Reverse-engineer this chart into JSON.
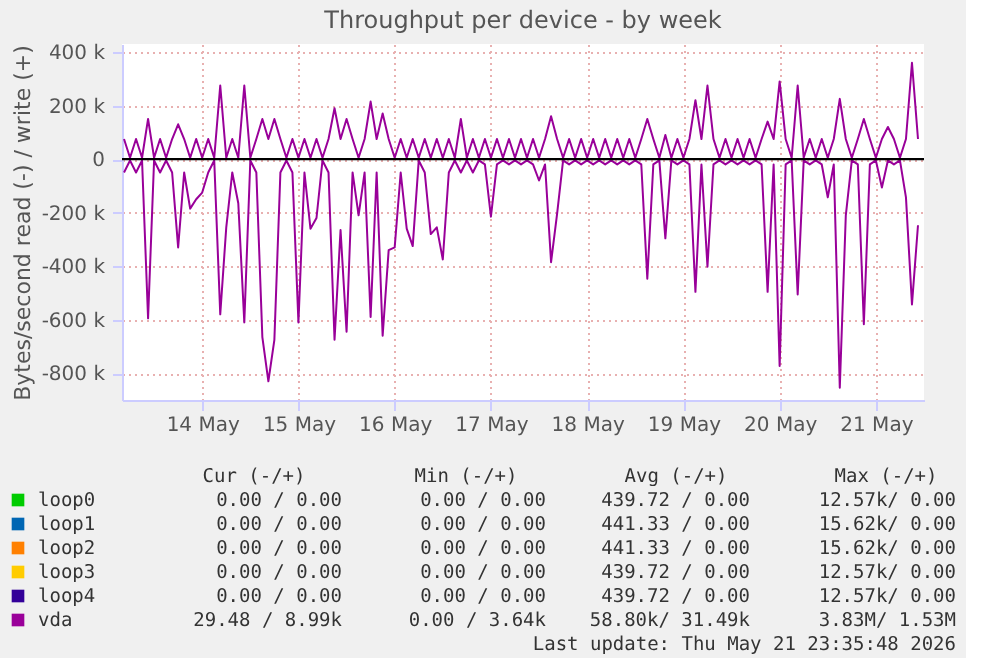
{
  "chart_data": {
    "type": "line",
    "title": "Throughput per device - by week",
    "ylabel": "Bytes/second read (-) / write (+)",
    "grid": true,
    "legend": "bottom",
    "xlim": [
      "2026-05-13T16:00",
      "2026-05-22T00:00"
    ],
    "xticks": [
      {
        "value": "2026-05-14T12:00",
        "label": "14 May"
      },
      {
        "value": "2026-05-15T12:00",
        "label": "15 May"
      },
      {
        "value": "2026-05-16T12:00",
        "label": "16 May"
      },
      {
        "value": "2026-05-17T12:00",
        "label": "17 May"
      },
      {
        "value": "2026-05-18T12:00",
        "label": "18 May"
      },
      {
        "value": "2026-05-19T12:00",
        "label": "19 May"
      },
      {
        "value": "2026-05-20T12:00",
        "label": "20 May"
      },
      {
        "value": "2026-05-21T12:00",
        "label": "21 May"
      }
    ],
    "ylim": [
      -900000,
      430000
    ],
    "yticks": [
      {
        "value": -800000,
        "label": "-800 k"
      },
      {
        "value": -600000,
        "label": "-600 k"
      },
      {
        "value": -400000,
        "label": "-400 k"
      },
      {
        "value": -200000,
        "label": "-200 k"
      },
      0,
      {
        "value": 200000,
        "label": "200 k"
      },
      {
        "value": 400000,
        "label": "400 k"
      }
    ],
    "ref_lines": [
      {
        "axis": "y",
        "value": 0,
        "color": "#000000"
      }
    ],
    "x": [
      "2026-05-13T16:30",
      "2026-05-13T18:00",
      "2026-05-13T19:30",
      "2026-05-13T21:00",
      "2026-05-13T22:30",
      "2026-05-14T00:00",
      "2026-05-14T01:30",
      "2026-05-14T03:00",
      "2026-05-14T04:30",
      "2026-05-14T06:00",
      "2026-05-14T07:30",
      "2026-05-14T09:00",
      "2026-05-14T10:30",
      "2026-05-14T12:00",
      "2026-05-14T13:30",
      "2026-05-14T15:00",
      "2026-05-14T16:30",
      "2026-05-14T18:00",
      "2026-05-14T19:30",
      "2026-05-14T21:00",
      "2026-05-14T22:30",
      "2026-05-15T00:00",
      "2026-05-15T01:30",
      "2026-05-15T03:00",
      "2026-05-15T04:30",
      "2026-05-15T06:00",
      "2026-05-15T07:30",
      "2026-05-15T09:00",
      "2026-05-15T10:30",
      "2026-05-15T12:00",
      "2026-05-15T13:30",
      "2026-05-15T15:00",
      "2026-05-15T16:30",
      "2026-05-15T18:00",
      "2026-05-15T19:30",
      "2026-05-15T21:00",
      "2026-05-15T22:30",
      "2026-05-16T00:00",
      "2026-05-16T01:30",
      "2026-05-16T03:00",
      "2026-05-16T04:30",
      "2026-05-16T06:00",
      "2026-05-16T07:30",
      "2026-05-16T09:00",
      "2026-05-16T10:30",
      "2026-05-16T12:00",
      "2026-05-16T13:30",
      "2026-05-16T15:00",
      "2026-05-16T16:30",
      "2026-05-16T18:00",
      "2026-05-16T19:30",
      "2026-05-16T21:00",
      "2026-05-16T22:30",
      "2026-05-17T00:00",
      "2026-05-17T01:30",
      "2026-05-17T03:00",
      "2026-05-17T04:30",
      "2026-05-17T06:00",
      "2026-05-17T07:30",
      "2026-05-17T09:00",
      "2026-05-17T10:30",
      "2026-05-17T12:00",
      "2026-05-17T13:30",
      "2026-05-17T15:00",
      "2026-05-17T16:30",
      "2026-05-17T18:00",
      "2026-05-17T19:30",
      "2026-05-17T21:00",
      "2026-05-17T22:30",
      "2026-05-18T00:00",
      "2026-05-18T01:30",
      "2026-05-18T03:00",
      "2026-05-18T04:30",
      "2026-05-18T06:00",
      "2026-05-18T07:30",
      "2026-05-18T09:00",
      "2026-05-18T10:30",
      "2026-05-18T12:00",
      "2026-05-18T13:30",
      "2026-05-18T15:00",
      "2026-05-18T16:30",
      "2026-05-18T18:00",
      "2026-05-18T19:30",
      "2026-05-18T21:00",
      "2026-05-18T22:30",
      "2026-05-19T00:00",
      "2026-05-19T01:30",
      "2026-05-19T03:00",
      "2026-05-19T04:30",
      "2026-05-19T06:00",
      "2026-05-19T07:30",
      "2026-05-19T09:00",
      "2026-05-19T10:30",
      "2026-05-19T12:00",
      "2026-05-19T13:30",
      "2026-05-19T15:00",
      "2026-05-19T16:30",
      "2026-05-19T18:00",
      "2026-05-19T19:30",
      "2026-05-19T21:00",
      "2026-05-19T22:30",
      "2026-05-20T00:00",
      "2026-05-20T01:30",
      "2026-05-20T03:00",
      "2026-05-20T04:30",
      "2026-05-20T06:00",
      "2026-05-20T07:30",
      "2026-05-20T09:00",
      "2026-05-20T10:30",
      "2026-05-20T12:00",
      "2026-05-20T13:30",
      "2026-05-20T15:00",
      "2026-05-20T16:30",
      "2026-05-20T18:00",
      "2026-05-20T19:30",
      "2026-05-20T21:00",
      "2026-05-20T22:30",
      "2026-05-21T00:00",
      "2026-05-21T01:30",
      "2026-05-21T03:00",
      "2026-05-21T04:30",
      "2026-05-21T06:00",
      "2026-05-21T07:30",
      "2026-05-21T09:00",
      "2026-05-21T10:30",
      "2026-05-21T12:00",
      "2026-05-21T13:30",
      "2026-05-21T15:00",
      "2026-05-21T16:30",
      "2026-05-21T18:00",
      "2026-05-21T19:30",
      "2026-05-21T21:00",
      "2026-05-21T22:30"
    ],
    "series": [
      {
        "name": "loop0",
        "color": "#00cc00",
        "values": [
          null,
          null,
          null,
          null,
          null,
          null,
          null,
          null,
          null,
          null,
          null,
          null,
          null,
          null,
          null,
          null,
          null,
          null,
          null,
          null,
          null,
          null,
          null,
          null,
          null,
          null,
          null,
          null,
          null,
          null,
          null,
          null,
          null,
          null,
          null,
          null,
          null,
          null,
          null,
          null,
          null,
          null,
          null,
          null,
          null,
          null,
          null,
          null,
          null,
          null,
          null,
          null,
          null,
          null,
          null,
          null,
          null,
          null,
          null,
          null,
          null,
          null,
          null,
          null,
          null,
          null,
          null,
          null,
          null,
          null,
          null,
          null,
          null,
          null,
          null,
          null,
          null,
          null,
          null,
          null,
          null,
          null,
          null,
          null,
          null,
          null,
          null,
          null,
          null,
          null,
          null,
          null,
          null,
          null,
          null,
          null,
          null,
          null,
          null,
          null,
          null,
          null,
          null,
          null,
          null,
          null,
          null,
          null,
          null,
          null,
          null,
          null,
          null,
          null,
          null,
          null,
          null,
          null,
          null,
          null,
          null,
          null,
          null,
          null,
          null,
          null,
          null,
          null,
          null,
          null,
          null,
          null,
          null
        ]
      },
      {
        "name": "loop1",
        "color": "#0066b3",
        "values": [
          null,
          null,
          null,
          null,
          null,
          null,
          null,
          null,
          null,
          null,
          null,
          null,
          null,
          null,
          null,
          null,
          null,
          null,
          null,
          null,
          null,
          null,
          null,
          null,
          null,
          null,
          null,
          null,
          null,
          null,
          null,
          null,
          null,
          null,
          null,
          null,
          null,
          null,
          null,
          null,
          null,
          null,
          null,
          null,
          null,
          null,
          null,
          null,
          null,
          null,
          null,
          null,
          null,
          null,
          null,
          null,
          null,
          null,
          null,
          null,
          null,
          null,
          null,
          null,
          null,
          null,
          null,
          null,
          null,
          null,
          null,
          null,
          null,
          null,
          null,
          null,
          null,
          null,
          null,
          null,
          null,
          null,
          null,
          null,
          null,
          null,
          null,
          null,
          null,
          null,
          null,
          null,
          null,
          null,
          null,
          null,
          null,
          null,
          null,
          null,
          null,
          null,
          null,
          null,
          null,
          null,
          null,
          null,
          null,
          null,
          null,
          null,
          null,
          null,
          null,
          null,
          null,
          null,
          null,
          null,
          null,
          null,
          null,
          null,
          null,
          null,
          null,
          null,
          null,
          null,
          null,
          null,
          null
        ]
      },
      {
        "name": "loop2",
        "color": "#ff8000",
        "values": [
          null,
          null,
          null,
          null,
          null,
          null,
          null,
          null,
          null,
          null,
          null,
          null,
          null,
          null,
          null,
          null,
          null,
          null,
          null,
          null,
          null,
          null,
          null,
          null,
          null,
          null,
          null,
          null,
          null,
          null,
          null,
          null,
          null,
          null,
          null,
          null,
          null,
          null,
          null,
          null,
          null,
          null,
          null,
          null,
          null,
          null,
          null,
          null,
          null,
          null,
          null,
          null,
          null,
          null,
          null,
          null,
          null,
          null,
          null,
          null,
          null,
          null,
          null,
          null,
          null,
          null,
          null,
          null,
          null,
          null,
          null,
          null,
          null,
          null,
          null,
          null,
          null,
          null,
          null,
          null,
          null,
          null,
          null,
          null,
          null,
          null,
          null,
          null,
          null,
          null,
          null,
          null,
          null,
          null,
          null,
          null,
          null,
          null,
          null,
          null,
          null,
          null,
          null,
          null,
          null,
          null,
          null,
          null,
          null,
          null,
          null,
          null,
          null,
          null,
          null,
          null,
          null,
          null,
          null,
          null,
          null,
          null,
          null,
          null,
          null,
          null,
          null,
          null,
          null,
          null,
          null,
          null,
          null
        ]
      },
      {
        "name": "loop3",
        "color": "#ffcc00",
        "values": [
          null,
          null,
          null,
          null,
          null,
          null,
          null,
          null,
          null,
          null,
          null,
          null,
          null,
          null,
          null,
          null,
          null,
          null,
          null,
          null,
          null,
          null,
          null,
          null,
          null,
          null,
          null,
          null,
          null,
          null,
          null,
          null,
          null,
          null,
          null,
          null,
          null,
          null,
          null,
          null,
          null,
          null,
          null,
          null,
          null,
          null,
          null,
          null,
          null,
          null,
          null,
          null,
          null,
          null,
          null,
          null,
          null,
          null,
          null,
          null,
          null,
          null,
          null,
          null,
          null,
          null,
          null,
          null,
          null,
          null,
          null,
          null,
          null,
          null,
          null,
          null,
          null,
          null,
          null,
          null,
          null,
          null,
          null,
          null,
          null,
          null,
          null,
          null,
          null,
          null,
          null,
          null,
          null,
          null,
          null,
          null,
          null,
          null,
          null,
          null,
          null,
          null,
          null,
          null,
          null,
          null,
          null,
          null,
          null,
          null,
          null,
          null,
          null,
          null,
          null,
          null,
          null,
          null,
          null,
          null,
          null,
          null,
          null,
          null,
          null,
          null,
          null,
          null,
          null,
          null,
          null,
          null,
          null
        ]
      },
      {
        "name": "loop4",
        "color": "#330099",
        "values": [
          null,
          null,
          null,
          null,
          null,
          null,
          null,
          null,
          null,
          null,
          null,
          null,
          null,
          null,
          null,
          null,
          null,
          null,
          null,
          null,
          null,
          null,
          null,
          null,
          null,
          null,
          null,
          null,
          null,
          null,
          null,
          null,
          null,
          null,
          null,
          null,
          null,
          null,
          null,
          null,
          null,
          null,
          null,
          null,
          null,
          null,
          null,
          null,
          null,
          null,
          null,
          null,
          null,
          null,
          null,
          null,
          null,
          null,
          null,
          null,
          null,
          null,
          null,
          null,
          null,
          null,
          null,
          null,
          null,
          null,
          null,
          null,
          null,
          null,
          null,
          null,
          null,
          null,
          null,
          null,
          null,
          null,
          null,
          null,
          null,
          null,
          null,
          null,
          null,
          null,
          null,
          null,
          null,
          null,
          null,
          null,
          null,
          null,
          null,
          null,
          null,
          null,
          null,
          null,
          null,
          null,
          null,
          null,
          null,
          null,
          null,
          null,
          null,
          null,
          null,
          null,
          null,
          null,
          null,
          null,
          null,
          null,
          null,
          null,
          null,
          null,
          null,
          null,
          null,
          null,
          null,
          null,
          null
        ]
      },
      {
        "name": "vda",
        "color": "#990099",
        "values": [
          -50000,
          -5000,
          -50000,
          -5000,
          -595000,
          -5000,
          -50000,
          -5000,
          -50000,
          -330000,
          -50000,
          -185000,
          -150000,
          -125000,
          -50000,
          -5000,
          -580000,
          -255000,
          -50000,
          -165000,
          -610000,
          -5000,
          -50000,
          -665000,
          -830000,
          -675000,
          -50000,
          -5000,
          -50000,
          -610000,
          -50000,
          -260000,
          -220000,
          -5000,
          -50000,
          -675000,
          -265000,
          -645000,
          -50000,
          -210000,
          -50000,
          -590000,
          -50000,
          -660000,
          -340000,
          -330000,
          -50000,
          -260000,
          -325000,
          -5000,
          -50000,
          -280000,
          -255000,
          -375000,
          -50000,
          -5000,
          -50000,
          -5000,
          -50000,
          -5000,
          -20000,
          -215000,
          -20000,
          -5000,
          -20000,
          -5000,
          -20000,
          -5000,
          -20000,
          -80000,
          -20000,
          -385000,
          -205000,
          -5000,
          -20000,
          -5000,
          -20000,
          -5000,
          -20000,
          -5000,
          -20000,
          -5000,
          -20000,
          -5000,
          -20000,
          -5000,
          -20000,
          -447000,
          -20000,
          -5000,
          -296000,
          -5000,
          -20000,
          -5000,
          -20000,
          -496000,
          -20000,
          -402000,
          -20000,
          -5000,
          -20000,
          -5000,
          -20000,
          -5000,
          -20000,
          -5000,
          -20000,
          -496000,
          -20000,
          -773000,
          -20000,
          -5000,
          -506000,
          -5000,
          -20000,
          -5000,
          -20000,
          -143000,
          -20000,
          -854000,
          -210000,
          -5000,
          -20000,
          -617000,
          -20000,
          -5000,
          -106000,
          -5000,
          -20000,
          -5000,
          -143000,
          -543000,
          -247000
        ]
      },
      {
        "color": "#990099",
        "values": [
          75000,
          5000,
          75000,
          5000,
          150000,
          5000,
          75000,
          5000,
          75000,
          130000,
          75000,
          5000,
          75000,
          5000,
          75000,
          5000,
          275000,
          5000,
          75000,
          5000,
          275000,
          5000,
          75000,
          150000,
          75000,
          150000,
          75000,
          5000,
          75000,
          5000,
          75000,
          5000,
          75000,
          5000,
          75000,
          190000,
          75000,
          150000,
          75000,
          5000,
          75000,
          215000,
          75000,
          170000,
          75000,
          5000,
          75000,
          5000,
          75000,
          5000,
          75000,
          5000,
          75000,
          5000,
          75000,
          5000,
          150000,
          5000,
          75000,
          5000,
          75000,
          5000,
          75000,
          5000,
          75000,
          5000,
          75000,
          5000,
          75000,
          5000,
          75000,
          160000,
          75000,
          5000,
          75000,
          5000,
          75000,
          5000,
          75000,
          5000,
          75000,
          5000,
          75000,
          5000,
          75000,
          5000,
          75000,
          150000,
          75000,
          5000,
          90000,
          5000,
          75000,
          5000,
          75000,
          220000,
          75000,
          275000,
          75000,
          5000,
          75000,
          5000,
          75000,
          5000,
          75000,
          5000,
          75000,
          140000,
          75000,
          290000,
          75000,
          5000,
          275000,
          5000,
          75000,
          5000,
          75000,
          5000,
          75000,
          225000,
          75000,
          5000,
          75000,
          150000,
          75000,
          5000,
          75000,
          120000,
          75000,
          5000,
          75000,
          360000,
          75000
        ]
      }
    ],
    "annotations": [
      "Cur (-/+)",
      "Min (-/+)",
      "Avg (-/+)",
      "Max (-/+)",
      "0.00 /  0.00",
      "0.00 /  0.00",
      "439.72 /  0.00",
      "12.57k/  0.00",
      "0.00 /  0.00",
      "0.00 /  0.00",
      "441.33 /  0.00",
      "15.62k/  0.00",
      "0.00 /  0.00",
      "0.00 /  0.00",
      "441.33 /  0.00",
      "15.62k/  0.00",
      "0.00 /  0.00",
      "0.00 /  0.00",
      "439.72 /  0.00",
      "12.57k/  0.00",
      "0.00 /  0.00",
      "0.00 /  0.00",
      "439.72 /  0.00",
      "12.57k/  0.00",
      "29.48 /  8.99k",
      "0.00 /  3.64k",
      "58.80k/ 31.49k",
      "3.83M/  1.53M",
      "Last update: Thu May 21 23:35:48 2026"
    ]
  }
}
